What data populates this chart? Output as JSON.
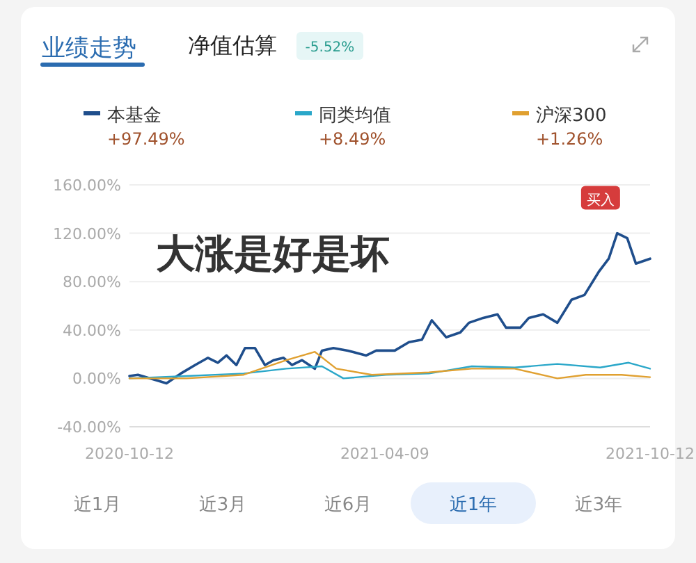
{
  "chart_data": {
    "type": "line",
    "title": "业绩走势",
    "legend": "top",
    "grid": "y",
    "marker": "none",
    "line_style": "solid",
    "ylim": [
      -40,
      160
    ],
    "yticks": [
      {
        "value": -40,
        "label": "-40.00%"
      },
      {
        "value": 0,
        "label": "0.00%"
      },
      {
        "value": 40,
        "label": "40.00%"
      },
      {
        "value": 80,
        "label": "80.00%"
      },
      {
        "value": 120,
        "label": "120.00%"
      },
      {
        "value": 160,
        "label": "160.00%"
      }
    ],
    "xlim": [
      "2020-10-12",
      "2021-10-12"
    ],
    "xticks": [
      {
        "value": "2020-10-12",
        "label": "2020-10-12"
      },
      {
        "value": "2021-04-09",
        "label": "2021-04-09"
      },
      {
        "value": "2021-10-12",
        "label": "2021-10-12"
      }
    ],
    "series": [
      {
        "name": "本基金",
        "color": "#1f4e8c",
        "x": [
          "2020-10-12",
          "2020-10-18",
          "2020-11-01",
          "2020-11-07",
          "2020-11-17",
          "2020-11-27",
          "2020-12-06",
          "2020-12-13",
          "2020-12-19",
          "2020-12-26",
          "2021-01-01",
          "2021-01-08",
          "2021-01-15",
          "2021-01-21",
          "2021-01-28",
          "2021-02-03",
          "2021-02-10",
          "2021-02-19",
          "2021-02-24",
          "2021-03-04",
          "2021-03-14",
          "2021-03-27",
          "2021-04-03",
          "2021-04-16",
          "2021-04-26",
          "2021-05-05",
          "2021-05-12",
          "2021-05-22",
          "2021-06-01",
          "2021-06-07",
          "2021-06-17",
          "2021-06-27",
          "2021-07-03",
          "2021-07-13",
          "2021-07-19",
          "2021-07-29",
          "2021-08-08",
          "2021-08-18",
          "2021-08-27",
          "2021-09-06",
          "2021-09-13",
          "2021-09-19",
          "2021-09-26",
          "2021-10-02",
          "2021-10-12"
        ],
        "values": [
          2,
          3,
          -2,
          -4,
          4,
          11,
          17,
          13,
          19,
          11,
          25,
          25,
          11,
          15,
          17,
          11,
          15,
          8,
          23,
          25,
          23,
          19,
          23,
          23,
          30,
          32,
          48,
          34,
          38,
          46,
          50,
          53,
          42,
          42,
          50,
          53,
          46,
          65,
          69,
          88,
          99,
          120,
          116,
          95,
          99
        ]
      },
      {
        "name": "同类均值",
        "color": "#2aa7c9",
        "x": [
          "2020-10-12",
          "2020-11-21",
          "2020-12-31",
          "2021-01-30",
          "2021-02-24",
          "2021-03-11",
          "2021-04-10",
          "2021-05-10",
          "2021-06-09",
          "2021-07-09",
          "2021-08-08",
          "2021-09-07",
          "2021-09-27",
          "2021-10-12"
        ],
        "values": [
          0,
          2,
          4,
          8,
          10,
          0,
          3,
          4,
          10,
          9,
          12,
          9,
          13,
          8
        ]
      },
      {
        "name": "沪深300",
        "color": "#e0a030",
        "x": [
          "2020-10-12",
          "2020-11-21",
          "2020-12-31",
          "2021-01-30",
          "2021-02-19",
          "2021-03-06",
          "2021-03-31",
          "2021-05-10",
          "2021-06-09",
          "2021-07-09",
          "2021-08-08",
          "2021-08-28",
          "2021-09-22",
          "2021-10-12"
        ],
        "values": [
          0,
          0,
          3,
          15,
          22,
          8,
          3,
          5,
          8,
          8,
          0,
          3,
          3,
          1
        ]
      }
    ],
    "annotations": [
      "净值估算",
      "-5.52%",
      "+97.49%",
      "+8.49%",
      "+1.26%",
      {
        "text": "买入",
        "x": "2021-09-19",
        "y": 120
      },
      "大涨是好是坏",
      "近1月",
      "近3月",
      "近6月",
      "近1年",
      "近3年"
    ]
  }
}
